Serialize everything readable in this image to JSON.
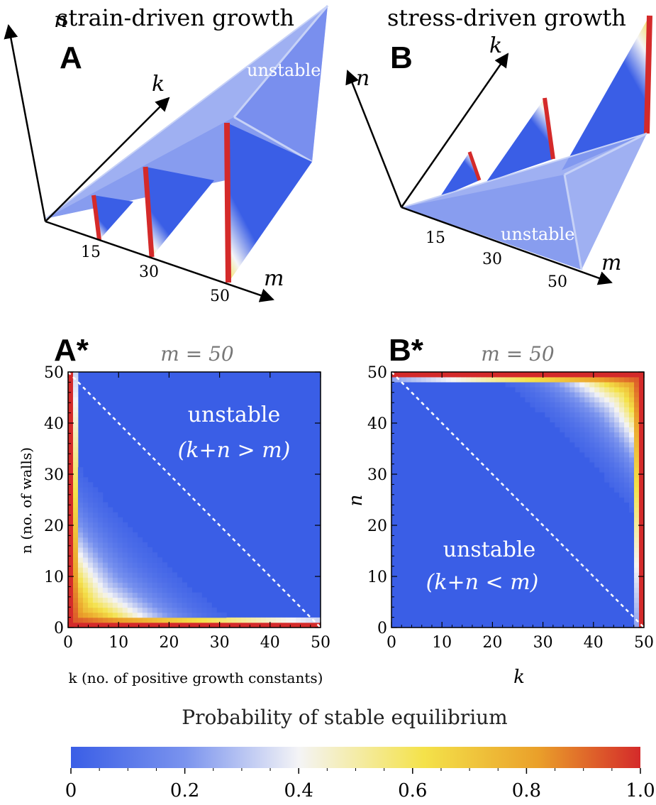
{
  "colors": {
    "blue": "#3a5ee6",
    "pale_blue": "#8ea2f0",
    "red": "#d42a2a",
    "yellow": "#f3d94a",
    "gray": "#777777"
  },
  "top_panels": {
    "A": {
      "letter": "A",
      "title": "strain-driven growth",
      "region_label": "unstable",
      "axes": {
        "n": "n",
        "k": "k",
        "m": "m"
      },
      "m_ticks": [
        "15",
        "30",
        "50"
      ]
    },
    "B": {
      "letter": "B",
      "title": "stress-driven growth",
      "region_label": "unstable",
      "axes": {
        "n": "n",
        "k": "k",
        "m": "m"
      },
      "m_ticks": [
        "15",
        "30",
        "50"
      ]
    }
  },
  "chart_data": [
    {
      "panel": "A*",
      "type": "heatmap",
      "title": "m = 50",
      "xlabel": "k (no. of positive growth constants)",
      "ylabel": "n (no. of walls)",
      "xlim": [
        0,
        50
      ],
      "ylim": [
        0,
        50
      ],
      "xticks": [
        0,
        10,
        20,
        30,
        40,
        50
      ],
      "yticks": [
        0,
        10,
        20,
        30,
        40,
        50
      ],
      "unstable_label": "unstable",
      "condition": "(k+n > m)",
      "dashed_line": {
        "from": [
          0,
          50
        ],
        "to": [
          50,
          0
        ]
      },
      "value_description": "probability of stable equilibrium, 1.0 along k=0 and n=0 edges, decaying to ~0 by k+n≈30"
    },
    {
      "panel": "B*",
      "type": "heatmap",
      "title": "m = 50",
      "xlabel": "k",
      "ylabel": "n",
      "xlim": [
        0,
        50
      ],
      "ylim": [
        0,
        50
      ],
      "xticks": [
        0,
        10,
        20,
        30,
        40,
        50
      ],
      "yticks": [
        0,
        10,
        20,
        30,
        40,
        50
      ],
      "unstable_label": "unstable",
      "condition": "(k+n < m)",
      "dashed_line": {
        "from": [
          0,
          50
        ],
        "to": [
          50,
          0
        ]
      },
      "value_description": "probability of stable equilibrium, 1.0 along k=50 and n=50 edges, decaying to ~0 by k+n≈70"
    }
  ],
  "colorbar": {
    "title": "Probability of stable equilibrium",
    "ticks": [
      "0",
      "0.2",
      "0.4",
      "0.6",
      "0.8",
      "1.0"
    ],
    "range": [
      0,
      1.0
    ]
  }
}
